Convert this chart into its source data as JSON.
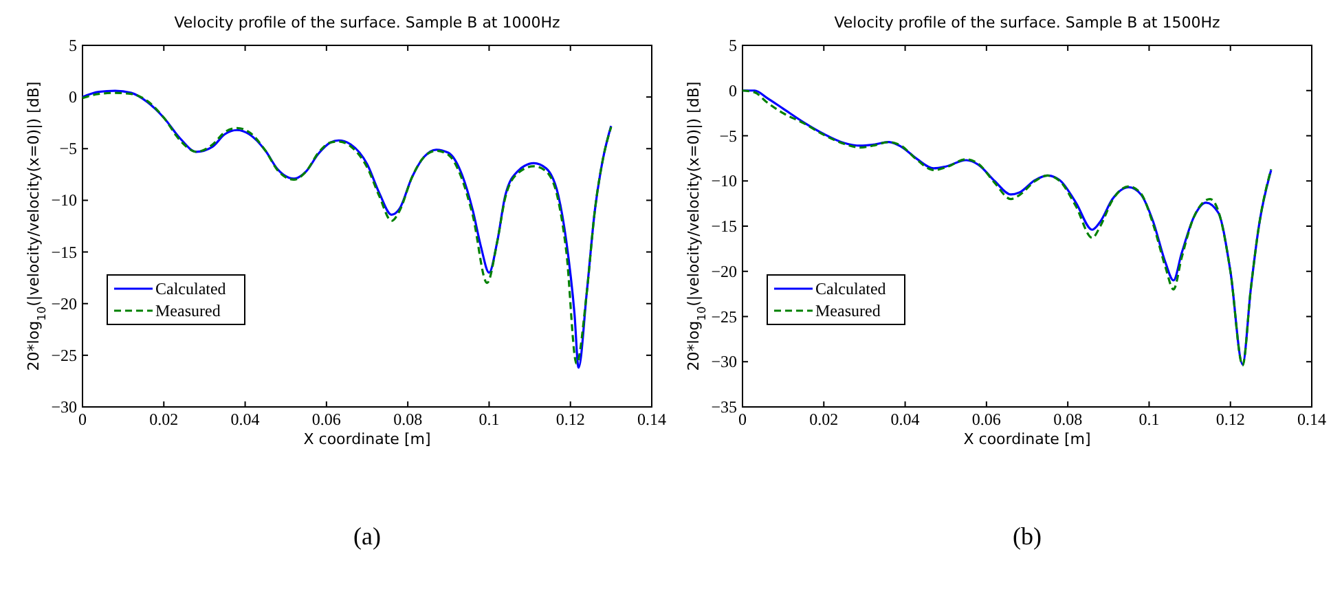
{
  "chart_data": [
    {
      "type": "line",
      "title": "Velocity profile of the surface. Sample B at 1000Hz",
      "xlabel": "X coordinate [m]",
      "ylabel": "20*log$_{10}$(|velocity/velocity(x=0)|) [dB]",
      "annotations": [
        "(a)"
      ],
      "xlim": [
        0,
        0.14
      ],
      "ylim": [
        -30,
        5
      ],
      "xticks": [
        0,
        0.02,
        0.04,
        0.06,
        0.08,
        0.1,
        0.12,
        0.14
      ],
      "yticks": [
        -30,
        -25,
        -20,
        -15,
        -10,
        -5,
        0,
        5
      ],
      "grid": false,
      "legend": "bottom left",
      "series": [
        {
          "name": "Calculated",
          "color": "#0000ff",
          "line_style": "solid",
          "x": [
            0,
            0.004,
            0.008,
            0.012,
            0.016,
            0.02,
            0.024,
            0.028,
            0.032,
            0.035,
            0.038,
            0.041,
            0.045,
            0.048,
            0.052,
            0.055,
            0.058,
            0.061,
            0.063,
            0.066,
            0.07,
            0.073,
            0.076,
            0.078,
            0.081,
            0.084,
            0.087,
            0.09,
            0.093,
            0.096,
            0.098,
            0.1,
            0.102,
            0.104,
            0.107,
            0.111,
            0.114,
            0.117,
            0.119,
            0.121,
            0.122,
            0.124,
            0.126,
            0.128,
            0.13
          ],
          "values": [
            0,
            0.5,
            0.6,
            0.4,
            -0.5,
            -2,
            -4,
            -5.3,
            -4.8,
            -3.6,
            -3.2,
            -3.6,
            -5.2,
            -7,
            -7.9,
            -7.2,
            -5.5,
            -4.4,
            -4.2,
            -4.6,
            -6.5,
            -9.3,
            -11.4,
            -10.8,
            -7.8,
            -5.8,
            -5.1,
            -5.4,
            -7.2,
            -11,
            -14.5,
            -17,
            -14,
            -9.5,
            -7.2,
            -6.4,
            -6.9,
            -9.5,
            -14,
            -21,
            -26.2,
            -19,
            -11,
            -6,
            -2.8
          ]
        },
        {
          "name": "Measured",
          "color": "#008000",
          "line_style": "dashed",
          "x": [
            0,
            0.004,
            0.008,
            0.012,
            0.016,
            0.02,
            0.024,
            0.028,
            0.032,
            0.035,
            0.038,
            0.041,
            0.045,
            0.048,
            0.052,
            0.055,
            0.058,
            0.061,
            0.063,
            0.066,
            0.07,
            0.073,
            0.076,
            0.078,
            0.081,
            0.084,
            0.087,
            0.09,
            0.093,
            0.096,
            0.0995,
            0.102,
            0.104,
            0.107,
            0.111,
            0.114,
            0.117,
            0.119,
            0.1215,
            0.124,
            0.126,
            0.128,
            0.13
          ],
          "values": [
            -0.1,
            0.3,
            0.4,
            0.3,
            -0.4,
            -2,
            -4.2,
            -5.3,
            -4.6,
            -3.4,
            -3,
            -3.4,
            -5.2,
            -7.1,
            -8,
            -7.2,
            -5.4,
            -4.4,
            -4.3,
            -4.8,
            -6.8,
            -9.6,
            -12,
            -11,
            -7.8,
            -5.8,
            -5.2,
            -5.6,
            -7.6,
            -11.5,
            -18,
            -14,
            -9.7,
            -7.4,
            -6.7,
            -7.2,
            -10,
            -15,
            -25.8,
            -19,
            -11,
            -6,
            -2.9
          ]
        }
      ]
    },
    {
      "type": "line",
      "title": "Velocity profile of the surface. Sample B at 1500Hz",
      "xlabel": "X coordinate [m]",
      "ylabel": "20*log$_{10}$(|velocity/velocity(x=0)|) [dB]",
      "annotations": [
        "(b)"
      ],
      "xlim": [
        0,
        0.14
      ],
      "ylim": [
        -35,
        5
      ],
      "xticks": [
        0,
        0.02,
        0.04,
        0.06,
        0.08,
        0.1,
        0.12,
        0.14
      ],
      "yticks": [
        -35,
        -30,
        -25,
        -20,
        -15,
        -10,
        -5,
        0,
        5
      ],
      "grid": false,
      "legend": "bottom left",
      "series": [
        {
          "name": "Calculated",
          "color": "#0000ff",
          "line_style": "solid",
          "x": [
            0,
            0.003,
            0.006,
            0.01,
            0.015,
            0.02,
            0.025,
            0.029,
            0.032,
            0.036,
            0.039,
            0.043,
            0.047,
            0.05,
            0.055,
            0.058,
            0.062,
            0.066,
            0.068,
            0.072,
            0.075,
            0.078,
            0.082,
            0.086,
            0.088,
            0.091,
            0.095,
            0.098,
            0.101,
            0.104,
            0.106,
            0.108,
            0.111,
            0.114,
            0.117,
            0.12,
            0.123,
            0.125,
            0.127,
            0.13
          ],
          "values": [
            0,
            0,
            -0.8,
            -2,
            -3.5,
            -4.8,
            -5.8,
            -6.1,
            -6,
            -5.7,
            -6.2,
            -7.6,
            -8.6,
            -8.4,
            -7.7,
            -8.2,
            -10,
            -11.5,
            -11.3,
            -9.9,
            -9.4,
            -9.9,
            -12.4,
            -15.4,
            -14.5,
            -12,
            -10.7,
            -11.5,
            -14.5,
            -19,
            -21,
            -18,
            -14,
            -12.4,
            -13.5,
            -20,
            -30.3,
            -22,
            -15,
            -8.8
          ]
        },
        {
          "name": "Measured",
          "color": "#008000",
          "line_style": "dashed",
          "x": [
            0,
            0.003,
            0.006,
            0.01,
            0.015,
            0.02,
            0.025,
            0.029,
            0.032,
            0.036,
            0.039,
            0.043,
            0.047,
            0.05,
            0.055,
            0.058,
            0.062,
            0.066,
            0.068,
            0.072,
            0.075,
            0.078,
            0.082,
            0.086,
            0.088,
            0.091,
            0.095,
            0.098,
            0.101,
            0.104,
            0.106,
            0.108,
            0.111,
            0.115,
            0.117,
            0.12,
            0.123,
            0.125,
            0.127,
            0.13
          ],
          "values": [
            0,
            -0.2,
            -1.3,
            -2.5,
            -3.6,
            -4.9,
            -5.9,
            -6.3,
            -6.1,
            -5.7,
            -6.1,
            -7.7,
            -8.8,
            -8.5,
            -7.6,
            -8.1,
            -10.2,
            -12,
            -11.6,
            -10,
            -9.4,
            -10,
            -12.8,
            -16.3,
            -15,
            -12.1,
            -10.6,
            -11.4,
            -14.8,
            -19.5,
            -22,
            -18.5,
            -14,
            -12,
            -13.3,
            -20,
            -30.4,
            -22,
            -15,
            -8.7
          ]
        }
      ]
    }
  ]
}
